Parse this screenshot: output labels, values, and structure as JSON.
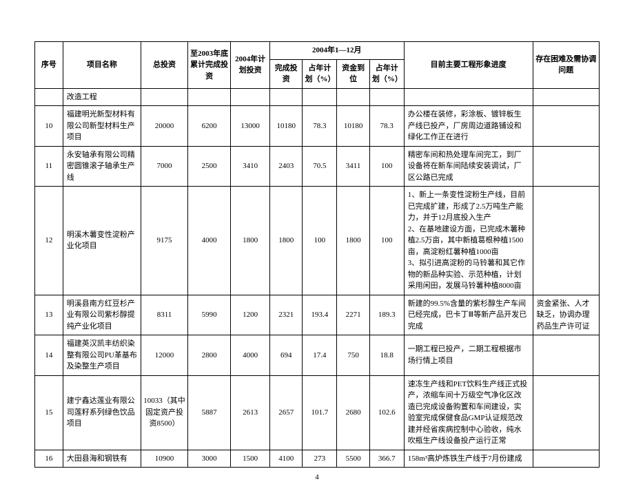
{
  "header": {
    "seq": "序号",
    "name": "项目名称",
    "total_inv": "总投资",
    "cum_inv": "至2003年底累计完成投资",
    "plan_inv": "2004年计划投资",
    "period": "2004年1—12月",
    "done_inv": "完成投资",
    "pct1": "占年计划（%）",
    "fund": "资金到位",
    "pct2": "占年计划（%）",
    "progress": "目前主要工程形象进度",
    "issues": "存在困难及需协调问题"
  },
  "rows": [
    {
      "seq": "",
      "name": "改造工程",
      "total_inv": "",
      "cum_inv": "",
      "plan_inv": "",
      "done_inv": "",
      "pct1": "",
      "fund": "",
      "pct2": "",
      "progress": "",
      "issues": ""
    },
    {
      "seq": "10",
      "name": "福建明光新型材料有限公司新型材料生产项目",
      "total_inv": "20000",
      "cum_inv": "6200",
      "plan_inv": "13000",
      "done_inv": "10180",
      "pct1": "78.3",
      "fund": "10180",
      "pct2": "78.3",
      "progress": "办公楼在装修，彩涂板、镀锌板生产线已投产，厂房周边道路铺设和绿化工作正在进行",
      "issues": ""
    },
    {
      "seq": "11",
      "name": "永安轴承有限公司精密圆锥滚子轴承生产线",
      "total_inv": "7000",
      "cum_inv": "2500",
      "plan_inv": "3410",
      "done_inv": "2403",
      "pct1": "70.5",
      "fund": "3411",
      "pct2": "100",
      "progress": "精密车间和热处理车间完工，到厂设备将在新车间陆续安装调试，厂区公路已完成",
      "issues": ""
    },
    {
      "seq": "12",
      "name": "明溪木薯变性淀粉产业化项目",
      "total_inv": "9175",
      "cum_inv": "4000",
      "plan_inv": "1800",
      "done_inv": "1800",
      "pct1": "100",
      "fund": "1800",
      "pct2": "100",
      "progress": "1、新上一条变性淀粉生产线，目前已完成扩建，形成了2.5万吨生产能力，并于12月底投入生产\n2、在基地建设方面，已完成木薯种植2.5万亩，其中新植葛根种植1500亩，高淀粉红薯种植1000亩\n3、拟引进高淀粉的马铃薯和其它作物的新品种实验、示范种植，计划采用闲田，发展马铃薯种植8000亩",
      "issues": ""
    },
    {
      "seq": "13",
      "name": "明溪县南方红豆杉产业有限公司紫杉醇提纯产业化项目",
      "total_inv": "8311",
      "cum_inv": "5990",
      "plan_inv": "1200",
      "done_inv": "2321",
      "pct1": "193.4",
      "fund": "2271",
      "pct2": "189.3",
      "progress": "新建的99.5%含量的紫杉醇生产车间已经完成，巴卡丁Ⅲ等新产品开发已完成",
      "issues": "资金紧张、人才缺乏，协调办理药品生产许可证"
    },
    {
      "seq": "14",
      "name": "福建英汉凯丰纺织染整有限公司PU革基布及染整生产项目",
      "total_inv": "12000",
      "cum_inv": "2800",
      "plan_inv": "4000",
      "done_inv": "694",
      "pct1": "17.4",
      "fund": "750",
      "pct2": "18.8",
      "progress": "一期工程已投产，二期工程根据市场行情上项目",
      "issues": ""
    },
    {
      "seq": "15",
      "name": "建宁鑫达莲业有限公司莲籽系列绿色饮品项目",
      "total_inv": "10033（其中固定资产投资8500）",
      "cum_inv": "5887",
      "plan_inv": "2613",
      "done_inv": "2657",
      "pct1": "101.7",
      "fund": "2680",
      "pct2": "102.6",
      "progress": "速冻生产线和PET饮料生产线正式投产，浓缩车间十万级空气净化区改造已完成设备购置和车间建设，实验室完成保健食品GMP认证规范改建并经省疾病控制中心验收，纯水吹瓶生产线设备投产运行正常",
      "issues": ""
    },
    {
      "seq": "16",
      "name": "大田县海和钢铁有",
      "total_inv": "10900",
      "cum_inv": "3000",
      "plan_inv": "1500",
      "done_inv": "4100",
      "pct1": "273",
      "fund": "5500",
      "pct2": "366.7",
      "progress": "158m³高炉炼铁生产线于7月份建成",
      "issues": ""
    }
  ],
  "page_number": "4"
}
